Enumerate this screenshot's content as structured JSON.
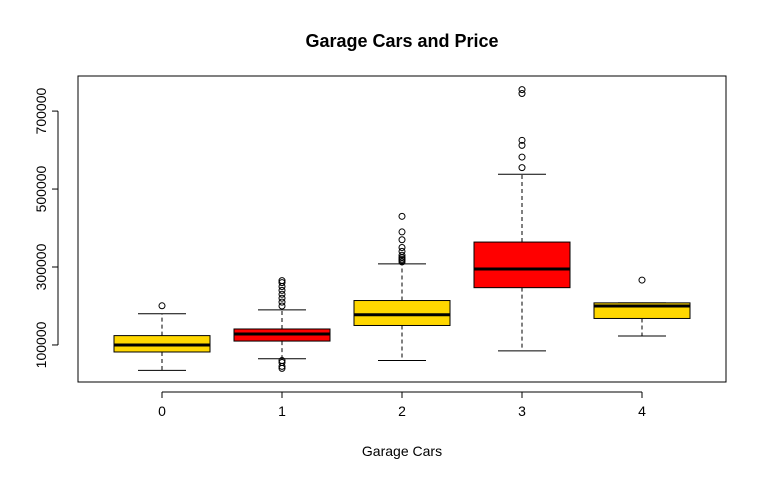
{
  "chart_data": {
    "type": "boxplot",
    "title": "Garage Cars and Price",
    "xlabel": "Garage Cars",
    "ylabel": "",
    "categories": [
      "0",
      "1",
      "2",
      "3",
      "4"
    ],
    "ylim": [
      5000,
      790000
    ],
    "yticks": [
      100000,
      300000,
      500000,
      700000
    ],
    "ytick_labels": [
      "100000",
      "300000",
      "500000",
      "700000"
    ],
    "colors": [
      "#FFD700",
      "#FF0000",
      "#FFD700",
      "#FF0000",
      "#FFD700"
    ],
    "boxes": [
      {
        "category": "0",
        "whisker_low": 34900,
        "q1": 82000,
        "median": 100000,
        "q3": 124000,
        "whisker_high": 180000,
        "outliers": [
          200500
        ]
      },
      {
        "category": "1",
        "whisker_low": 64500,
        "q1": 110000,
        "median": 128000,
        "q3": 141000,
        "whisker_high": 190000,
        "outliers": [
          40000,
          45000,
          55000,
          60000,
          200000,
          210000,
          220000,
          230000,
          240000,
          250000,
          260000,
          265000
        ]
      },
      {
        "category": "2",
        "whisker_low": 60000,
        "q1": 150000,
        "median": 177500,
        "q3": 214000,
        "whisker_high": 308000,
        "outliers": [
          313000,
          317000,
          320000,
          324000,
          330000,
          340000,
          350000,
          370000,
          390000,
          430000
        ]
      },
      {
        "category": "3",
        "whisker_low": 85000,
        "q1": 247000,
        "median": 295000,
        "q3": 364000,
        "whisker_high": 538000,
        "outliers": [
          555000,
          582000,
          612000,
          625000,
          745000,
          755000
        ]
      },
      {
        "category": "4",
        "whisker_low": 123000,
        "q1": 168000,
        "median": 200000,
        "q3": 208000,
        "whisker_high": 208000,
        "outliers": [
          266500
        ]
      }
    ]
  }
}
